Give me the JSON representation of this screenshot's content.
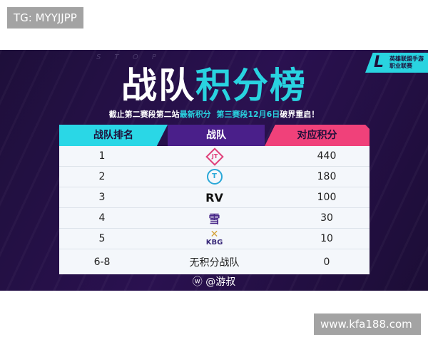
{
  "watermark_top": "TG: MYYJJPP",
  "watermark_bottom": "www.kfa188.com",
  "banner": {
    "stop_text": "S T O P",
    "title_white": "战队",
    "title_cyan": "积分榜",
    "subtitle_a": "截止第二赛段第二站",
    "subtitle_b": "最新积分",
    "subtitle_c": "第三赛段12月6日",
    "subtitle_d": "破界重启！",
    "logo_text": "英雄联盟手游 职业联赛",
    "weibo": "@游叔"
  },
  "table": {
    "headers": [
      "战队排名",
      "战队",
      "对应积分"
    ],
    "rows": [
      {
        "rank": "1",
        "team_logo": "JT",
        "points": "440"
      },
      {
        "rank": "2",
        "team_logo": "T",
        "points": "180"
      },
      {
        "rank": "3",
        "team_logo": "RV",
        "points": "100"
      },
      {
        "rank": "4",
        "team_logo": "雪",
        "points": "30"
      },
      {
        "rank": "5",
        "team_logo": "KBG",
        "points": "10"
      },
      {
        "rank": "6-8",
        "team": "无积分战队",
        "points": "0"
      }
    ]
  },
  "colors": {
    "cyan": "#29d3e0",
    "pink": "#f0417a",
    "purple": "#4a1f8a",
    "bg": "#1e0f3a"
  }
}
